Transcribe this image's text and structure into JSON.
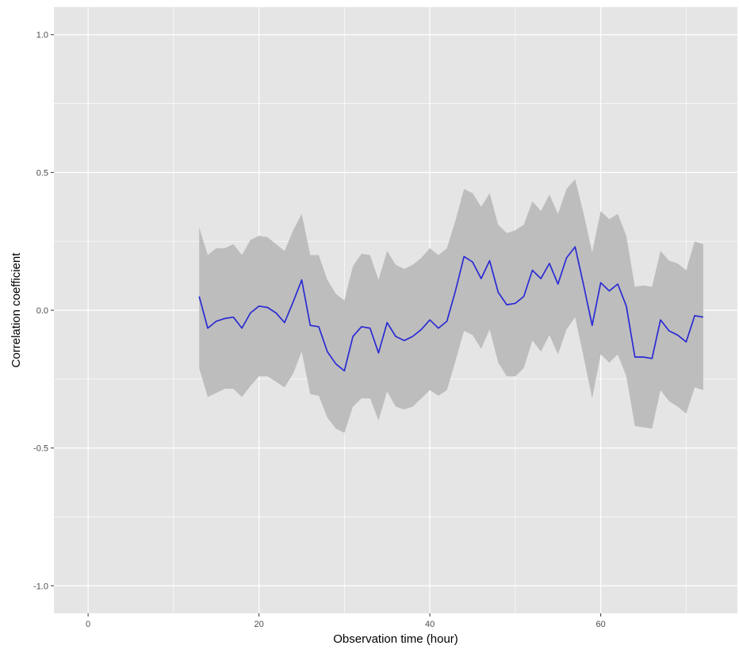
{
  "chart_data": {
    "type": "line",
    "title": "",
    "xlabel": "Observation time (hour)",
    "ylabel": "Correlation coefficient",
    "xlim": [
      -4,
      76
    ],
    "ylim": [
      -1.1,
      1.1
    ],
    "x_ticks": [
      0,
      20,
      40,
      60
    ],
    "x_tick_labels": [
      "0",
      "20",
      "40",
      "60"
    ],
    "y_ticks": [
      -1.0,
      -0.5,
      0.0,
      0.5,
      1.0
    ],
    "y_tick_labels": [
      "-1.0",
      "-0.5",
      "0.0",
      "0.5",
      "1.0"
    ],
    "grid": true,
    "legend": "none",
    "colors": {
      "panel_background": "#e5e5e5",
      "grid_line": "#ffffff",
      "line": "#2a2ad4",
      "ribbon": "#bdbdbd"
    },
    "series": [
      {
        "x": [
          13,
          14,
          15,
          16,
          17,
          18,
          19,
          20,
          21,
          22,
          23,
          24,
          25,
          26,
          27,
          28,
          29,
          30,
          31,
          32,
          33,
          34,
          35,
          36,
          37,
          38,
          39,
          40,
          41,
          42,
          43,
          44,
          45,
          46,
          47,
          48,
          49,
          50,
          51,
          52,
          53,
          54,
          55,
          56,
          57,
          58,
          59,
          60,
          61,
          62,
          63,
          64,
          65,
          66,
          67,
          68,
          69,
          70,
          71,
          72
        ],
        "y": [
          0.05,
          -0.065,
          -0.04,
          -0.03,
          -0.025,
          -0.065,
          -0.01,
          0.015,
          0.01,
          -0.01,
          -0.045,
          0.03,
          0.11,
          -0.055,
          -0.06,
          -0.15,
          -0.195,
          -0.22,
          -0.095,
          -0.06,
          -0.065,
          -0.155,
          -0.045,
          -0.095,
          -0.11,
          -0.095,
          -0.07,
          -0.035,
          -0.065,
          -0.04,
          0.07,
          0.195,
          0.175,
          0.115,
          0.18,
          0.065,
          0.02,
          0.025,
          0.05,
          0.145,
          0.115,
          0.17,
          0.095,
          0.19,
          0.23,
          0.09,
          -0.055,
          0.1,
          0.07,
          0.095,
          0.015,
          -0.17,
          -0.17,
          -0.175,
          -0.035,
          -0.075,
          -0.09,
          -0.115,
          -0.02,
          -0.025
        ],
        "lower": [
          -0.21,
          -0.315,
          -0.3,
          -0.285,
          -0.285,
          -0.315,
          -0.275,
          -0.24,
          -0.24,
          -0.26,
          -0.28,
          -0.23,
          -0.15,
          -0.305,
          -0.31,
          -0.39,
          -0.43,
          -0.445,
          -0.35,
          -0.32,
          -0.32,
          -0.4,
          -0.295,
          -0.35,
          -0.36,
          -0.35,
          -0.32,
          -0.29,
          -0.31,
          -0.29,
          -0.185,
          -0.075,
          -0.09,
          -0.14,
          -0.07,
          -0.19,
          -0.24,
          -0.24,
          -0.21,
          -0.11,
          -0.15,
          -0.09,
          -0.16,
          -0.07,
          -0.025,
          -0.17,
          -0.32,
          -0.16,
          -0.19,
          -0.16,
          -0.24,
          -0.42,
          -0.425,
          -0.43,
          -0.29,
          -0.33,
          -0.35,
          -0.375,
          -0.28,
          -0.29
        ],
        "upper": [
          0.3,
          0.2,
          0.225,
          0.225,
          0.24,
          0.2,
          0.255,
          0.27,
          0.265,
          0.24,
          0.215,
          0.29,
          0.35,
          0.2,
          0.2,
          0.11,
          0.06,
          0.035,
          0.16,
          0.205,
          0.2,
          0.11,
          0.215,
          0.165,
          0.15,
          0.165,
          0.19,
          0.225,
          0.2,
          0.225,
          0.325,
          0.44,
          0.425,
          0.375,
          0.425,
          0.31,
          0.28,
          0.29,
          0.31,
          0.395,
          0.36,
          0.42,
          0.35,
          0.44,
          0.475,
          0.35,
          0.21,
          0.36,
          0.33,
          0.35,
          0.27,
          0.085,
          0.09,
          0.085,
          0.215,
          0.18,
          0.17,
          0.145,
          0.25,
          0.24
        ]
      }
    ]
  }
}
